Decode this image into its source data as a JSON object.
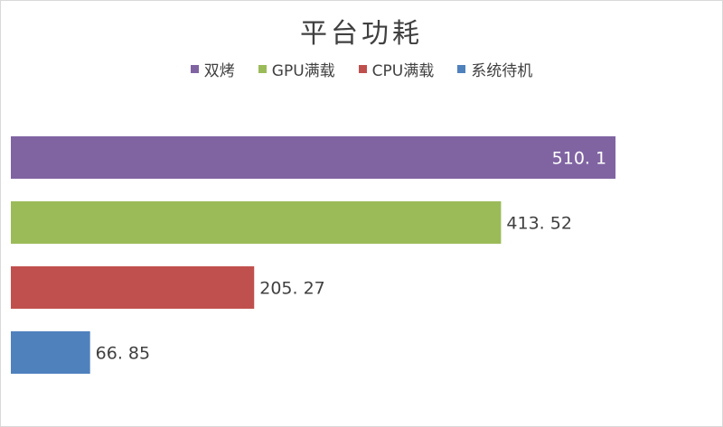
{
  "chart_data": {
    "type": "bar",
    "orientation": "horizontal",
    "title": "平台功耗",
    "categories": [
      "双烤",
      "GPU满载",
      "CPU满载",
      "系统待机"
    ],
    "values": [
      510.1,
      413.52,
      205.27,
      66.85
    ],
    "value_labels": [
      "510. 1",
      "413. 52",
      "205. 27",
      "66. 85"
    ],
    "colors": [
      "#8064a2",
      "#9bbb59",
      "#c0504d",
      "#4f81bd"
    ],
    "legend_position": "top",
    "grid": false,
    "xlim": [
      0,
      600
    ]
  }
}
